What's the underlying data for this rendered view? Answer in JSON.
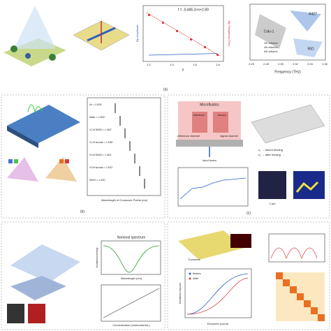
{
  "panel_a": {
    "label": "(a)",
    "equation": "f = -0.485.3×n+2.89",
    "y_left": "Dip Amplitude",
    "y_right": "Dip Frequency (THz)",
    "x_label": "n",
    "x_ticks": [
      "1.2",
      "1.4",
      "1.6",
      "1.8"
    ],
    "freq_x": "Frequency (THz)",
    "freq_ticks": [
      "2.26",
      "2.28",
      "2.30",
      "2.32",
      "2.34",
      "2.36"
    ],
    "cells": [
      "Calu-1",
      "A427",
      "95D"
    ],
    "legend": [
      "200 cells/mm²",
      "400 cells/mm²",
      "600 cells/mm²"
    ]
  },
  "panel_b": {
    "label": "(b)",
    "x_label": "Wavelength of Crossover Points (nm)",
    "legend": [
      "Air = 1.0003",
      "Water = 1.3330",
      "0.1 M DMSO = 1.3347",
      "0.1 M sucrose = 1.3350",
      "0.5 M DMSO = 1.3421",
      "0.5 M sucrose = 1.3427",
      "DMSO = 1.4751"
    ]
  },
  "panel_c": {
    "label": "(c)",
    "device": [
      "Microfluidics",
      "reference",
      "sensor",
      "reference channel",
      "signal channel",
      "input beam"
    ],
    "binding": [
      "λ₁ → before binding",
      "λ₂ → after binding"
    ],
    "scale": "2 μm"
  },
  "panel_d": {
    "title": "Nominal spectrum",
    "x_label": "Wavelength (nm)",
    "y_label": "Normalized intensity",
    "conc": "Concentration (molecules/mL)"
  },
  "panel_e": {
    "legend": [
      "Before",
      "After"
    ],
    "x_label": "Exosome (count)",
    "y_label": "Normalized response",
    "tag": "Exosome"
  }
}
